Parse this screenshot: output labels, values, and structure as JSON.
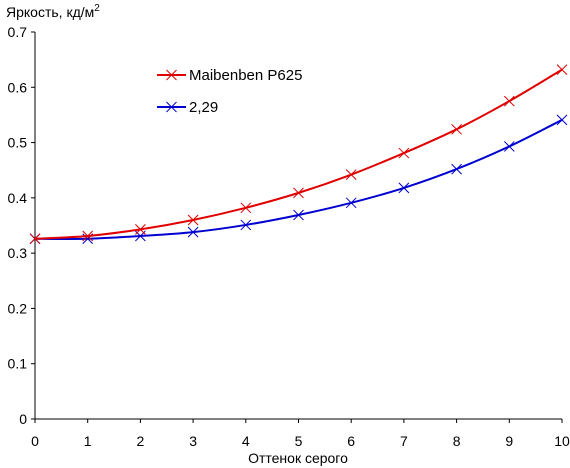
{
  "chart_data": {
    "type": "line",
    "ylabel": "Яркость, кд/м",
    "ylabel_superscript": "2",
    "xlabel": "Оттенок серого",
    "xlim": [
      0,
      10
    ],
    "ylim": [
      0,
      0.7
    ],
    "x_ticks": [
      "0",
      "1",
      "2",
      "3",
      "4",
      "5",
      "6",
      "7",
      "8",
      "9",
      "10"
    ],
    "y_ticks": [
      "0",
      "0.1",
      "0.2",
      "0.3",
      "0.4",
      "0.5",
      "0.6",
      "0.7"
    ],
    "grid": false,
    "legend_position": "top-left",
    "x": [
      0,
      1,
      2,
      3,
      4,
      5,
      6,
      7,
      8,
      9,
      10
    ],
    "series": [
      {
        "name": "Maibenben P625",
        "color": "#e00000",
        "marker": "x",
        "values": [
          0.326,
          0.331,
          0.343,
          0.36,
          0.382,
          0.409,
          0.442,
          0.481,
          0.524,
          0.575,
          0.632
        ]
      },
      {
        "name": "2,29",
        "color": "#0000d0",
        "marker": "x",
        "values": [
          0.326,
          0.326,
          0.331,
          0.338,
          0.351,
          0.369,
          0.391,
          0.418,
          0.452,
          0.493,
          0.541
        ]
      }
    ]
  }
}
